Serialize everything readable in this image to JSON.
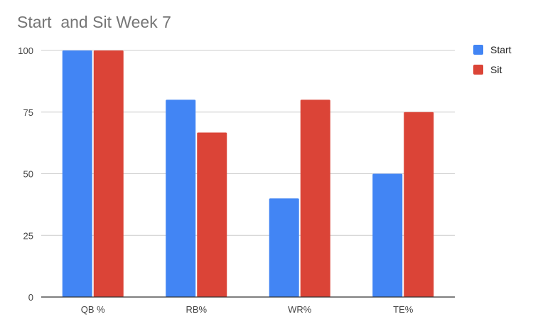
{
  "chart_data": {
    "type": "bar",
    "title": "Start  and Sit Week 7",
    "xlabel": "",
    "ylabel": "",
    "categories": [
      "QB %",
      "RB%",
      "WR%",
      "TE%"
    ],
    "series": [
      {
        "name": "Start",
        "color": "#4285f4",
        "values": [
          100,
          80,
          40,
          50
        ]
      },
      {
        "name": "Sit",
        "color": "#db4437",
        "values": [
          100,
          66.7,
          80,
          75
        ]
      }
    ],
    "ylim": [
      0,
      100
    ],
    "yticks": [
      0,
      25,
      50,
      75,
      100
    ],
    "grid": true,
    "legend_position": "right"
  }
}
